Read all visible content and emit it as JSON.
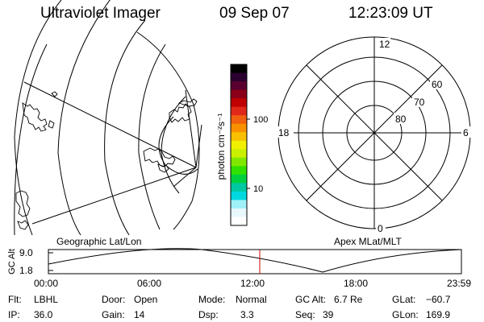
{
  "header": {
    "instrument": "Ultraviolet Imager",
    "date": "09 Sep 07",
    "time": "12:23:09 UT"
  },
  "colors": {
    "background": "#ffffff",
    "line": "#000000",
    "time_marker": "#cc0000"
  },
  "colorbar": {
    "unit_label": "photon cm⁻²s⁻¹",
    "ticks": [
      "100",
      "10"
    ],
    "scale": "log",
    "palette": [
      "#000000",
      "#2a0030",
      "#5a0030",
      "#8a0018",
      "#c00000",
      "#e02818",
      "#f06010",
      "#f89000",
      "#f8c000",
      "#f0f000",
      "#c8f000",
      "#80e800",
      "#30e000",
      "#00d040",
      "#00c8a0",
      "#00d8e0",
      "#a0f0f8",
      "#e8f8fc",
      "#ffffff"
    ]
  },
  "panels": {
    "left_label": "Geographic Lat/Lon",
    "right_label": "Apex MLat/MLT"
  },
  "polar_plot": {
    "mlt_labels": {
      "top": "12",
      "left": "18",
      "right": "6",
      "bottom": "0"
    },
    "lat_labels": [
      "60",
      "70",
      "80"
    ]
  },
  "orbit": {
    "axis_label": "GC Alt",
    "y_ticks": [
      "9.0",
      "1.8"
    ],
    "x_ticks": [
      "00:00",
      "06:00",
      "12:00",
      "18:00",
      "23:59"
    ]
  },
  "status": {
    "flt_label": "Flt:",
    "flt_value": "LBHL",
    "ip_label": "IP:",
    "ip_value": "36.0",
    "door_label": "Door:",
    "door_value": "Open",
    "gain_label": "Gain:",
    "gain_value": "14",
    "mode_label": "Mode:",
    "mode_value": "Normal",
    "dsp_label": "Dsp:",
    "dsp_value": "3.3",
    "gcalt_label": "GC Alt:",
    "gcalt_value": "6.7 Re",
    "seq_label": "Seq:",
    "seq_value": "39",
    "glat_label": "GLat:",
    "glat_value": "−60.7",
    "glon_label": "GLon:",
    "glon_value": "169.9"
  }
}
